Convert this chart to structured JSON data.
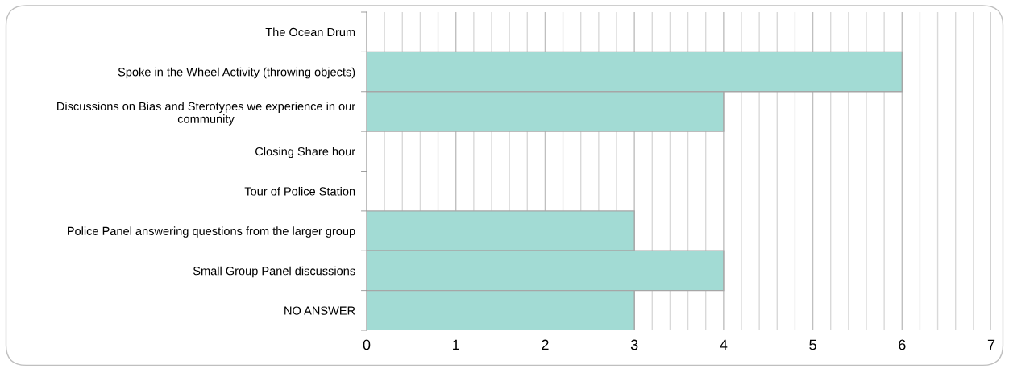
{
  "chart_data": {
    "type": "bar",
    "orientation": "horizontal",
    "categories": [
      "The Ocean Drum",
      "Spoke in the Wheel Activity (throwing objects)",
      "Discussions on Bias and Sterotypes we experience in our community",
      "Closing Share hour",
      "Tour of Police Station",
      "Police Panel answering questions from the larger group",
      "Small Group Panel discussions",
      "NO ANSWER"
    ],
    "values": [
      0,
      6,
      4,
      0,
      0,
      3,
      4,
      3
    ],
    "color": "#a2dbd4",
    "xlim": [
      0,
      7
    ],
    "xticks": [
      0,
      1,
      2,
      3,
      4,
      5,
      6,
      7
    ],
    "grid": "x"
  }
}
